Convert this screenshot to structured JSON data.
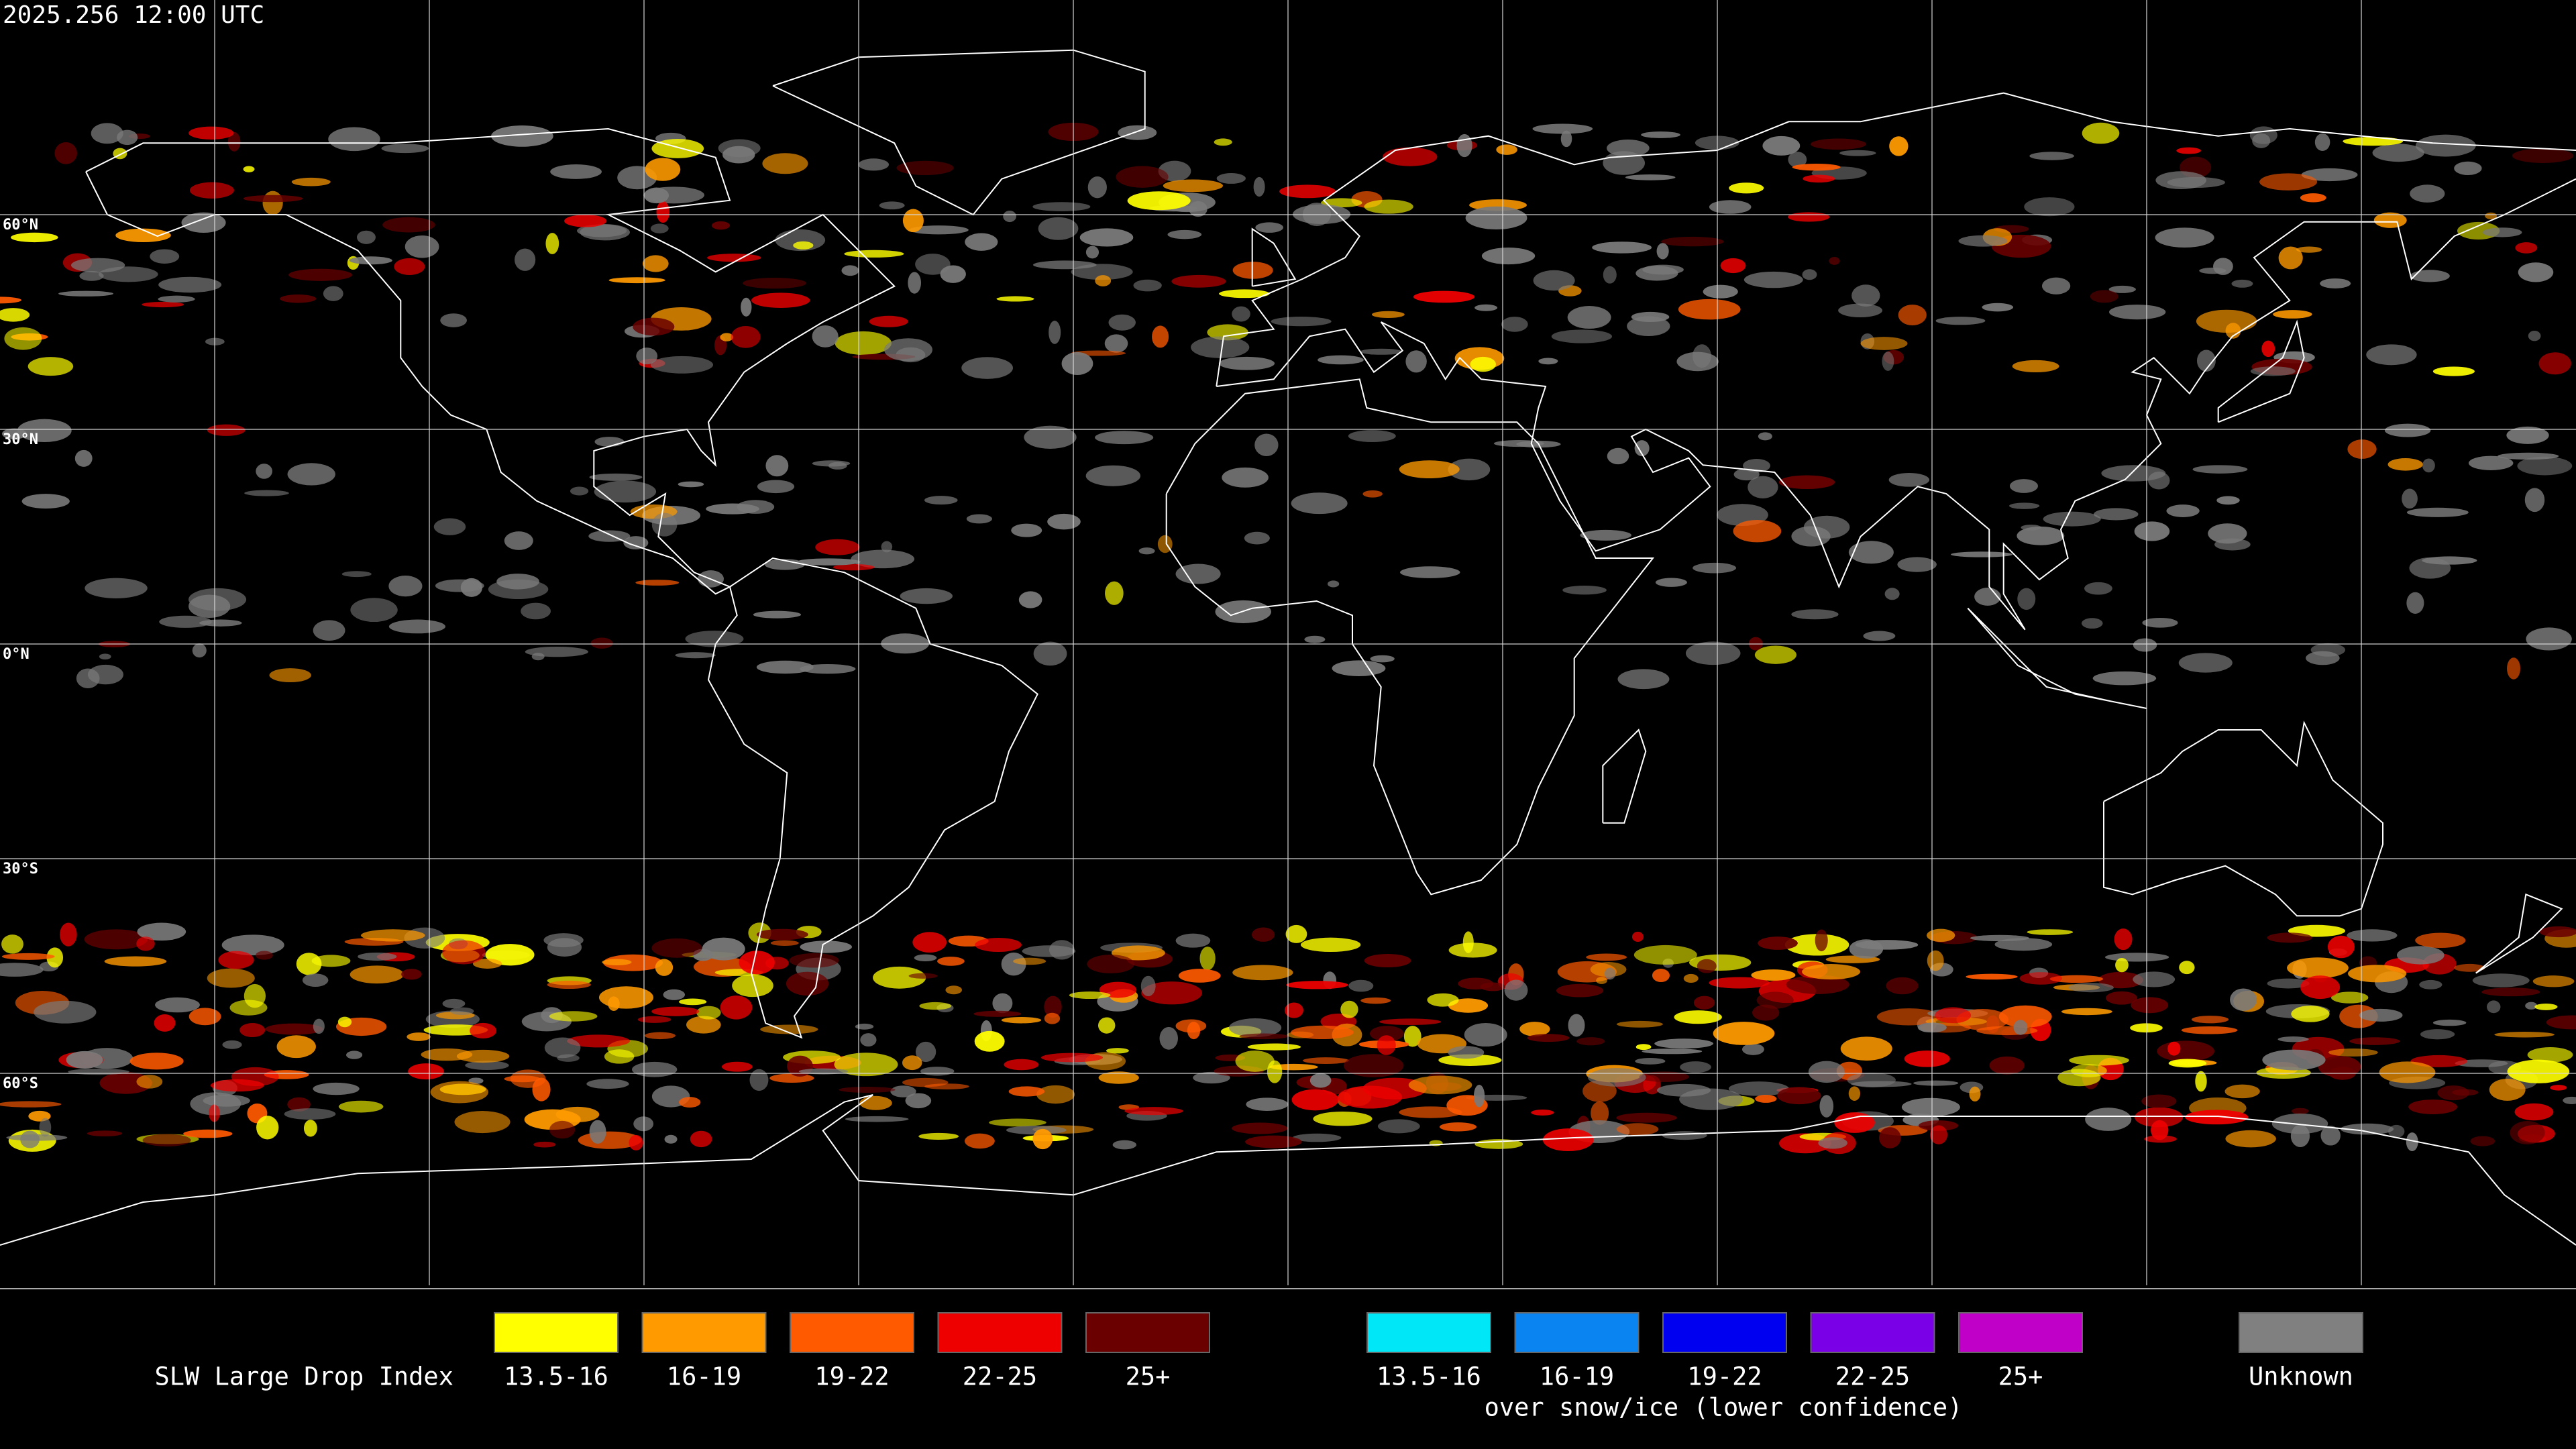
{
  "header": {
    "title": "2025.256 12:00 UTC"
  },
  "latitude_labels": [
    "60°N",
    "30°N",
    "0°N",
    "30°S",
    "60°S"
  ],
  "legend": {
    "title": "SLW Large Drop Index",
    "items": [
      {
        "label": "13.5-16",
        "color": "#ffff00"
      },
      {
        "label": "16-19",
        "color": "#ff9a00"
      },
      {
        "label": "19-22",
        "color": "#ff5a00"
      },
      {
        "label": "22-25",
        "color": "#ee0000"
      },
      {
        "label": "25+",
        "color": "#6a0000"
      }
    ],
    "snow_items": [
      {
        "label": "13.5-16",
        "color": "#00e8f8"
      },
      {
        "label": "16-19",
        "color": "#0a84f0"
      },
      {
        "label": "19-22",
        "color": "#0000f0"
      },
      {
        "label": "22-25",
        "color": "#7a00e8"
      },
      {
        "label": "25+",
        "color": "#c000c8"
      }
    ],
    "snow_caption": "over snow/ice (lower confidence)",
    "unknown": {
      "label": "Unknown",
      "color": "#808080"
    }
  }
}
